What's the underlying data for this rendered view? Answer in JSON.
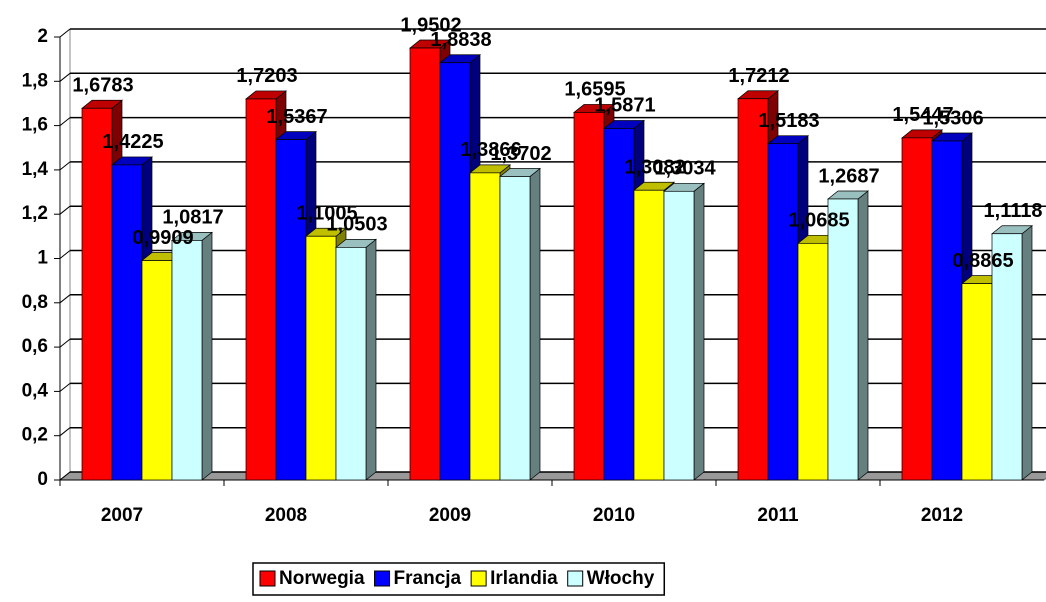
{
  "chart_data": {
    "type": "bar3d",
    "categories": [
      "2007",
      "2008",
      "2009",
      "2010",
      "2011",
      "2012"
    ],
    "series": [
      {
        "name": "Norwegia",
        "color": "#ff0000",
        "values": [
          1.6783,
          1.7203,
          1.9502,
          1.6595,
          1.7212,
          1.5447
        ],
        "value_labels": [
          "1,6783",
          "1,7203",
          "1,9502",
          "1,6595",
          "1,7212",
          "1,5447"
        ]
      },
      {
        "name": "Francja",
        "color": "#0000ff",
        "values": [
          1.4225,
          1.5367,
          1.8838,
          1.5871,
          1.5183,
          1.5306
        ],
        "value_labels": [
          "1,4225",
          "1,5367",
          "1,8838",
          "1,5871",
          "1,5183",
          "1,5306"
        ]
      },
      {
        "name": "Irlandia",
        "color": "#ffff00",
        "values": [
          0.9909,
          1.1005,
          1.3866,
          1.3082,
          1.0685,
          0.8865
        ],
        "value_labels": [
          "0,9909",
          "1,1005",
          "1,3866",
          "1,3082",
          "1,0685",
          "0,8865"
        ]
      },
      {
        "name": "Włochy",
        "color": "#ccffff",
        "values": [
          1.0817,
          1.0503,
          1.3702,
          1.3034,
          1.2687,
          1.1118
        ],
        "value_labels": [
          "1,0817",
          "1,0503",
          "1,3702",
          "1,3034",
          "1,2687",
          "1,1118"
        ]
      }
    ],
    "ylim": [
      0,
      2
    ],
    "yticks": [
      0,
      {
        "value": 0.2,
        "label": "0,2"
      },
      {
        "value": 0.4,
        "label": "0,4"
      },
      {
        "value": 0.6,
        "label": "0,6"
      },
      {
        "value": 0.8,
        "label": "0,8"
      },
      1,
      {
        "value": 1.2,
        "label": "1,2"
      },
      {
        "value": 1.4,
        "label": "1,4"
      },
      {
        "value": 1.6,
        "label": "1,6"
      },
      {
        "value": 1.8,
        "label": "1,8"
      },
      2
    ],
    "grid": true,
    "legend": "bottom"
  }
}
